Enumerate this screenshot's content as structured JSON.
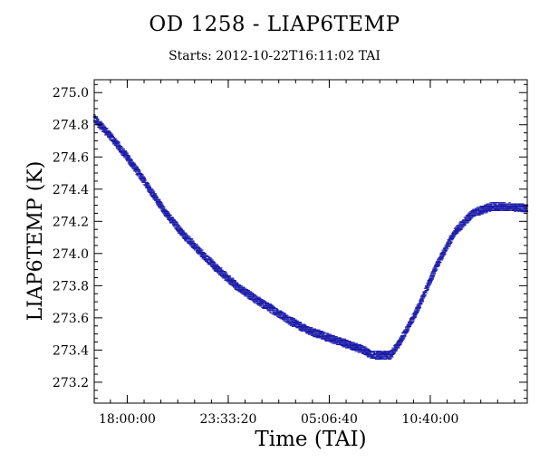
{
  "chart_data": {
    "type": "scatter",
    "title": "OD 1258 - LIAP6TEMP",
    "subtitle": "Starts: 2012-10-22T16:11:02 TAI",
    "xlabel": "Time (TAI)",
    "ylabel": "LIAP6TEMP (K)",
    "x_tick_labels": [
      "18:00:00",
      "23:33:20",
      "05:06:40",
      "10:40:00"
    ],
    "x_tick_values_hours": [
      18.0,
      23.5556,
      29.1111,
      34.6667
    ],
    "x_range_hours": [
      16.1839,
      40.0
    ],
    "y_tick_labels": [
      "273.2",
      "273.4",
      "273.6",
      "273.8",
      "274.0",
      "274.2",
      "274.4",
      "274.6",
      "274.8",
      "275.0"
    ],
    "ylim": [
      273.07,
      275.08
    ],
    "grid": false,
    "series": [
      {
        "color": "#1a1aa8",
        "x_hours": [
          16.18,
          17.0,
          18.0,
          19.0,
          20.0,
          21.0,
          22.0,
          23.0,
          24.0,
          25.0,
          26.0,
          27.0,
          28.0,
          29.0,
          30.0,
          31.0,
          31.5,
          32.0,
          32.5,
          33.0,
          34.0,
          35.0,
          36.0,
          37.0,
          38.0,
          39.0,
          40.0
        ],
        "values": [
          274.84,
          274.74,
          274.6,
          274.44,
          274.27,
          274.13,
          274.01,
          273.9,
          273.8,
          273.72,
          273.65,
          273.58,
          273.52,
          273.48,
          273.44,
          273.4,
          273.37,
          273.37,
          273.37,
          273.45,
          273.66,
          273.92,
          274.13,
          274.25,
          274.29,
          274.29,
          274.28
        ]
      }
    ]
  },
  "colors": {
    "series": "#1a1aa8",
    "axes": "#000000",
    "background": "#ffffff"
  }
}
